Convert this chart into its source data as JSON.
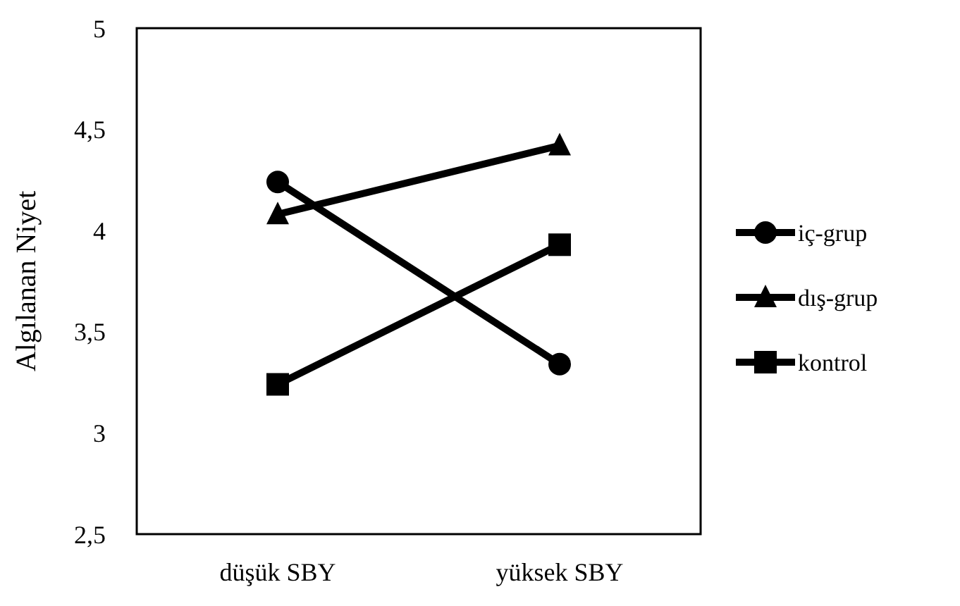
{
  "chart_data": {
    "type": "line",
    "ylabel": "Algılanan Niyet",
    "categories": [
      "düşük SBY",
      "yüksek SBY"
    ],
    "series": [
      {
        "name": "iç-grup",
        "color": "#000000",
        "marker": "circle",
        "values": [
          4.24,
          3.34
        ]
      },
      {
        "name": "dış-grup",
        "color": "#000000",
        "marker": "triangle",
        "values": [
          4.08,
          4.42
        ]
      },
      {
        "name": "kontrol",
        "color": "#000000",
        "marker": "square",
        "values": [
          3.24,
          3.93
        ]
      }
    ],
    "ylim": [
      2.5,
      5
    ],
    "yticks": [
      {
        "value": 2.5,
        "label": "2,5"
      },
      {
        "value": 3,
        "label": "3"
      },
      {
        "value": 3.5,
        "label": "3,5"
      },
      {
        "value": 4,
        "label": "4"
      },
      {
        "value": 4.5,
        "label": "4,5"
      },
      {
        "value": 5,
        "label": "5"
      }
    ],
    "grid": false,
    "legend": "right",
    "line_style": "solid"
  }
}
